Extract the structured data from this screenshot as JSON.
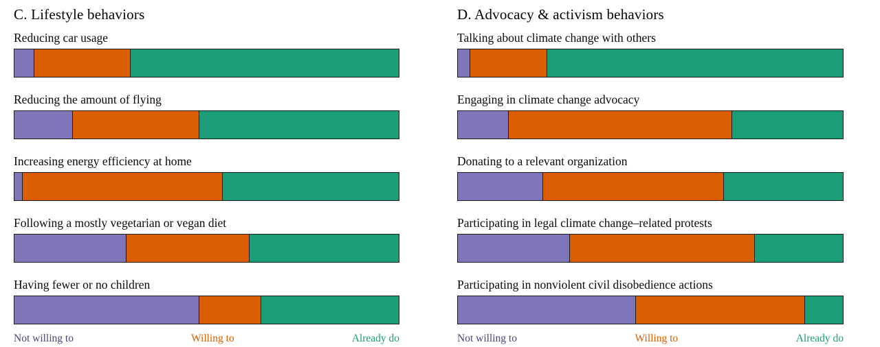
{
  "legend": {
    "items": [
      {
        "key": "not-willing-to",
        "label": "Not willing to",
        "color": "#7e76b8",
        "text_color": "#474572"
      },
      {
        "key": "willing-to",
        "label": "Willing to",
        "color": "#d95f02",
        "text_color": "#d95f02"
      },
      {
        "key": "already-do",
        "label": "Already do",
        "color": "#1b9e77",
        "text_color": "#1b9e77"
      }
    ]
  },
  "colors": {
    "not_willing_to": "#7e76b8",
    "willing_to": "#d95f02",
    "already_do": "#1b9e77",
    "bar_border": "#1c1c1c",
    "background": "#ffffff"
  },
  "chart_data": [
    {
      "type": "bar",
      "stacked": true,
      "orientation": "horizontal",
      "unit": "percent",
      "xlim": [
        0,
        100
      ],
      "title": "C. Lifestyle behaviors",
      "series": [
        "Not willing to",
        "Willing to",
        "Already do"
      ],
      "categories": [
        "Reducing car usage",
        "Reducing the amount of flying",
        "Increasing energy efficiency at home",
        "Following a mostly vegetarian or vegan diet",
        "Having fewer or no children"
      ],
      "values": [
        [
          5,
          25,
          70
        ],
        [
          15,
          33,
          52
        ],
        [
          2,
          52,
          46
        ],
        [
          29,
          32,
          39
        ],
        [
          48,
          16,
          36
        ]
      ]
    },
    {
      "type": "bar",
      "stacked": true,
      "orientation": "horizontal",
      "unit": "percent",
      "xlim": [
        0,
        100
      ],
      "title": "D. Advocacy & activism behaviors",
      "series": [
        "Not willing to",
        "Willing to",
        "Already do"
      ],
      "categories": [
        "Talking about climate change with others",
        "Engaging in climate change advocacy",
        "Donating to a relevant organization",
        "Participating in legal climate change–related protests",
        "Participating in nonviolent civil disobedience actions"
      ],
      "values": [
        [
          3,
          20,
          77
        ],
        [
          13,
          58,
          29
        ],
        [
          22,
          47,
          31
        ],
        [
          29,
          48,
          23
        ],
        [
          46,
          44,
          10
        ]
      ]
    }
  ]
}
